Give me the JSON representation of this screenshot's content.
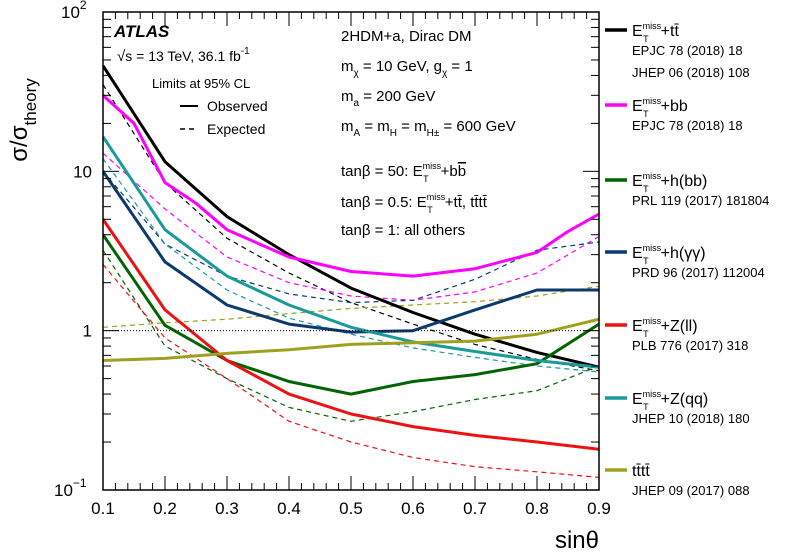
{
  "chart_data": {
    "type": "line",
    "xlabel": "sinθ",
    "ylabel_main": "σ/σ",
    "ylabel_sub": "theory",
    "xlim": [
      0.1,
      0.9
    ],
    "ylim": [
      0.1,
      100
    ],
    "y_scale": "log",
    "x_ticks": [
      "0.1",
      "0.2",
      "0.3",
      "0.4",
      "0.5",
      "0.6",
      "0.7",
      "0.8",
      "0.9"
    ],
    "y_ticks": [
      {
        "value": 0.1,
        "base": "10",
        "exp": "−1"
      },
      {
        "value": 1,
        "base": "1",
        "exp": ""
      },
      {
        "value": 10,
        "base": "10",
        "exp": ""
      },
      {
        "value": 100,
        "base": "10",
        "exp": "2"
      }
    ],
    "reference_line": 1,
    "atlas_label": "ATLAS",
    "energy_label": "s = 13 TeV, 36.1 fb",
    "energy_exp": "-1",
    "cl_label": "Limits at 95% CL",
    "style_legend": [
      {
        "label": "Observed",
        "dash": false
      },
      {
        "label": "Expected",
        "dash": true
      }
    ],
    "model_text": {
      "l1": "2HDM+a, Dirac DM",
      "l2": "m = 10 GeV, g = 1",
      "l3": "m = 200 GeV",
      "l4": "m = m = m = 600 GeV",
      "l5": "tanβ = 50: E +bb",
      "l6": "tanβ = 0.5: E +tt̄, tt̄tt̄",
      "l7": "tanβ = 1: all others",
      "sym_chi": "χ",
      "sym_a": "a",
      "sym_A": "A",
      "sym_H": "H",
      "sym_Hpm": "H±",
      "e_sup": "miss",
      "e_sub": "T"
    },
    "series": [
      {
        "name": "E +tt̄",
        "ref1": "EPJC 78 (2018) 18",
        "ref2": "JHEP 06 (2018) 108",
        "color": "#000000",
        "x": [
          0.1,
          0.2,
          0.3,
          0.4,
          0.5,
          0.6,
          0.7,
          0.8,
          0.9
        ],
        "observed": [
          46,
          11.5,
          5.2,
          3.0,
          1.85,
          1.3,
          0.95,
          0.73,
          0.59
        ],
        "expected_x": [
          0.1,
          0.2,
          0.3,
          0.4,
          0.5,
          0.6,
          0.7,
          0.8,
          0.9
        ],
        "expected": [
          35,
          8.5,
          3.8,
          2.3,
          1.5,
          1.1,
          0.82,
          0.66,
          0.56
        ]
      },
      {
        "name": "E +bb",
        "ref1": "EPJC 78 (2018) 18",
        "ref2": "",
        "color": "#ff00ff",
        "x": [
          0.1,
          0.15,
          0.2,
          0.25,
          0.3,
          0.4,
          0.5,
          0.6,
          0.7,
          0.8,
          0.85,
          0.9
        ],
        "observed": [
          30,
          20,
          8.5,
          6.3,
          4.3,
          2.9,
          2.35,
          2.2,
          2.45,
          3.1,
          4.2,
          5.4
        ],
        "expected_x": [
          0.1,
          0.2,
          0.3,
          0.4,
          0.5,
          0.6,
          0.7,
          0.8,
          0.9
        ],
        "expected": [
          13,
          5.8,
          2.9,
          2.0,
          1.65,
          1.55,
          1.75,
          2.3,
          3.9
        ]
      },
      {
        "name": "E +h(bb)",
        "ref1": "PRL 119 (2017) 181804",
        "ref2": "",
        "color": "#006400",
        "x": [
          0.1,
          0.2,
          0.3,
          0.4,
          0.5,
          0.6,
          0.7,
          0.8,
          0.9
        ],
        "observed": [
          4.0,
          1.08,
          0.65,
          0.48,
          0.4,
          0.48,
          0.53,
          0.62,
          1.1
        ],
        "expected_x": [
          0.1,
          0.2,
          0.3,
          0.4,
          0.5,
          0.6,
          0.7,
          0.8,
          0.9
        ],
        "expected": [
          3.2,
          0.8,
          0.5,
          0.33,
          0.27,
          0.31,
          0.37,
          0.42,
          0.6
        ]
      },
      {
        "name": "E +h(γγ)",
        "ref1": "PRD 96 (2017) 112004",
        "ref2": "",
        "color": "#0b3a6e",
        "x": [
          0.1,
          0.2,
          0.3,
          0.4,
          0.5,
          0.6,
          0.7,
          0.8,
          0.9
        ],
        "observed": [
          10,
          2.7,
          1.45,
          1.1,
          0.98,
          1.0,
          1.35,
          1.8,
          1.8
        ],
        "expected_x": [
          0.1,
          0.2,
          0.3,
          0.4,
          0.5,
          0.6,
          0.7,
          0.8,
          0.9
        ],
        "expected": [
          10,
          3.5,
          2.2,
          1.7,
          1.5,
          1.55,
          2.1,
          3.2,
          3.6
        ]
      },
      {
        "name": "E +Z(ll)",
        "ref1": "PLB 776 (2017) 318",
        "ref2": "",
        "color": "#ee1111",
        "x": [
          0.1,
          0.2,
          0.3,
          0.4,
          0.5,
          0.6,
          0.7,
          0.8,
          0.9
        ],
        "observed": [
          5.0,
          1.35,
          0.65,
          0.4,
          0.3,
          0.25,
          0.22,
          0.2,
          0.18
        ],
        "expected_x": [
          0.1,
          0.2,
          0.3,
          0.4,
          0.5,
          0.6,
          0.7,
          0.8,
          0.9
        ],
        "expected": [
          2.6,
          0.9,
          0.5,
          0.27,
          0.2,
          0.16,
          0.14,
          0.13,
          0.12
        ]
      },
      {
        "name": "E +Z(qq)",
        "ref1": "JHEP 10 (2018) 180",
        "ref2": "",
        "color": "#1a9a9a",
        "x": [
          0.1,
          0.2,
          0.3,
          0.4,
          0.5,
          0.6,
          0.7,
          0.8,
          0.9
        ],
        "observed": [
          16.5,
          4.3,
          2.2,
          1.45,
          1.05,
          0.85,
          0.74,
          0.65,
          0.59
        ],
        "expected_x": [
          0.1,
          0.2,
          0.3,
          0.4,
          0.5,
          0.6,
          0.7,
          0.8,
          0.9
        ],
        "expected": [
          12,
          3.5,
          1.8,
          1.2,
          0.95,
          0.78,
          0.68,
          0.6,
          0.55
        ]
      },
      {
        "name": "tt̄tt̄",
        "ref1": "JHEP 09 (2017) 088",
        "ref2": "",
        "color": "#a0a020",
        "x": [
          0.1,
          0.2,
          0.3,
          0.4,
          0.5,
          0.6,
          0.7,
          0.8,
          0.9
        ],
        "observed": [
          0.65,
          0.67,
          0.72,
          0.76,
          0.82,
          0.84,
          0.86,
          0.95,
          1.18
        ],
        "expected_x": [
          0.1,
          0.2,
          0.3,
          0.4,
          0.5,
          0.6,
          0.7,
          0.8,
          0.9
        ],
        "expected": [
          1.05,
          1.12,
          1.18,
          1.28,
          1.38,
          1.45,
          1.52,
          1.65,
          1.9
        ]
      }
    ]
  }
}
